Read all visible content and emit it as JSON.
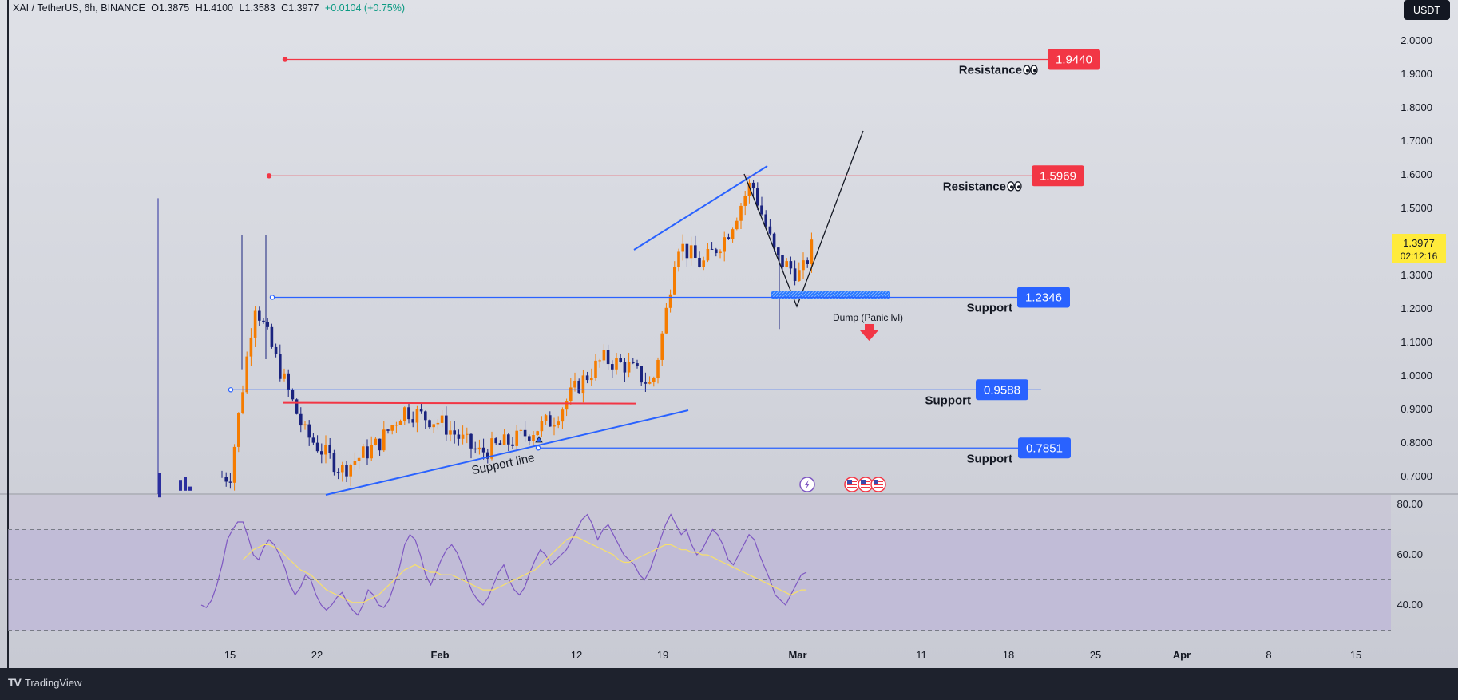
{
  "header": {
    "symbol": "XAI / TetherUS, 6h, BINANCE",
    "open": "O1.3875",
    "high": "H1.4100",
    "low": "L1.3583",
    "close": "C1.3977",
    "change": "+0.0104 (+0.75%)",
    "currency": "USDT"
  },
  "last_price": {
    "value": "1.3977",
    "countdown": "02:12:16"
  },
  "footer": {
    "brand": "TradingView"
  },
  "annotations": {
    "support_line": "Support line",
    "dump": "Dump (Panic lvl)"
  },
  "levels": [
    {
      "label": "Resistance",
      "value": "1.9440",
      "price": 1.944,
      "color": "#f23645",
      "icon": "eyes-emoji"
    },
    {
      "label": "Resistance",
      "value": "1.5969",
      "price": 1.5969,
      "color": "#f23645",
      "icon": "eyes-emoji"
    },
    {
      "label": "Support",
      "value": "1.2346",
      "price": 1.2346,
      "color": "#2962ff"
    },
    {
      "label": "Support",
      "value": "0.9588",
      "price": 0.9588,
      "color": "#2962ff"
    },
    {
      "label": "Support",
      "value": "0.7851",
      "price": 0.7851,
      "color": "#2962ff"
    }
  ],
  "chart_data": [
    {
      "type": "candlestick",
      "title": "",
      "series_name": "XAI / TetherUS",
      "y_axis": {
        "ticks": [
          "2.0000",
          "1.9000",
          "1.8000",
          "1.7000",
          "1.6000",
          "1.5000",
          "1.4000",
          "1.3000",
          "1.2000",
          "1.1000",
          "1.0000",
          "0.9000",
          "0.8000",
          "0.7000"
        ],
        "range": [
          0.66,
          2.05
        ]
      },
      "x_axis": {
        "ticks": [
          "15",
          "22",
          "Feb",
          "12",
          "19",
          "Mar",
          "11",
          "18",
          "25",
          "Apr",
          "8",
          "15"
        ]
      },
      "price_path": [
        {
          "date": "Jan 15",
          "close": 0.7
        },
        {
          "date": "Jan 17",
          "close": 1.22
        },
        {
          "date": "Jan 19",
          "close": 1.02
        },
        {
          "date": "Jan 21",
          "close": 0.83
        },
        {
          "date": "Jan 24",
          "close": 0.72
        },
        {
          "date": "Jan 27",
          "close": 0.8
        },
        {
          "date": "Jan 29",
          "close": 0.9
        },
        {
          "date": "Feb 1",
          "close": 0.86
        },
        {
          "date": "Feb 4",
          "close": 0.77
        },
        {
          "date": "Feb 7",
          "close": 0.81
        },
        {
          "date": "Feb 10",
          "close": 0.87
        },
        {
          "date": "Feb 12",
          "close": 0.97
        },
        {
          "date": "Feb 14",
          "close": 1.05
        },
        {
          "date": "Feb 16",
          "close": 1.03
        },
        {
          "date": "Feb 18",
          "close": 0.97
        },
        {
          "date": "Feb 19",
          "close": 1.16
        },
        {
          "date": "Feb 20",
          "close": 1.4
        },
        {
          "date": "Feb 22",
          "close": 1.33
        },
        {
          "date": "Feb 24",
          "close": 1.42
        },
        {
          "date": "Feb 26",
          "close": 1.58
        },
        {
          "date": "Feb 28",
          "close": 1.35
        },
        {
          "date": "Mar 1",
          "close": 1.3
        },
        {
          "date": "Mar 2",
          "close": 1.3977
        }
      ]
    },
    {
      "type": "line",
      "title": "",
      "y_axis": {
        "ticks": [
          "80.00",
          "60.00",
          "40.00"
        ],
        "range": [
          31,
          83
        ]
      },
      "levels": [
        70,
        50,
        30
      ],
      "series": [
        {
          "color": "#7e57c2",
          "values": [
            40,
            39,
            42,
            48,
            56,
            66,
            70,
            73,
            73,
            67,
            60,
            58,
            63,
            66,
            64,
            60,
            55,
            48,
            44,
            47,
            52,
            50,
            44,
            40,
            38,
            40,
            43,
            45,
            41,
            38,
            36,
            40,
            46,
            44,
            40,
            39,
            42,
            48,
            55,
            64,
            68,
            66,
            60,
            52,
            48,
            53,
            58,
            62,
            64,
            61,
            56,
            50,
            45,
            42,
            40,
            43,
            48,
            53,
            56,
            50,
            46,
            44,
            47,
            53,
            58,
            62,
            60,
            56,
            58,
            60,
            62,
            66,
            70,
            74,
            76,
            72,
            66,
            70,
            72,
            68,
            64,
            60,
            58,
            56,
            52,
            50,
            54,
            60,
            66,
            72,
            76,
            72,
            68,
            70,
            64,
            60,
            62,
            66,
            70,
            68,
            64,
            58,
            56,
            60,
            64,
            68,
            66,
            60,
            55,
            50,
            44,
            42,
            40,
            44,
            48,
            52,
            53
          ]
        },
        {
          "color": "#f7e06b",
          "values": [
            null,
            null,
            null,
            null,
            null,
            null,
            null,
            null,
            58,
            60,
            62,
            63,
            64,
            64,
            63,
            62,
            60,
            58,
            56,
            54,
            53,
            52,
            50,
            48,
            46,
            45,
            44,
            43,
            42,
            41,
            41,
            41,
            42,
            43,
            44,
            46,
            48,
            50,
            52,
            54,
            55,
            56,
            55,
            54,
            53,
            53,
            52,
            52,
            52,
            51,
            50,
            49,
            48,
            47,
            46,
            46,
            46,
            47,
            48,
            49,
            50,
            51,
            52,
            53,
            54,
            56,
            58,
            60,
            62,
            64,
            66,
            67,
            67,
            66,
            65,
            64,
            63,
            62,
            61,
            60,
            58,
            57,
            57,
            58,
            59,
            60,
            61,
            62,
            63,
            64,
            64,
            63,
            62,
            62,
            61,
            61,
            60,
            60,
            59,
            58,
            57,
            56,
            55,
            54,
            53,
            52,
            51,
            50,
            49,
            48,
            47,
            46,
            45,
            44,
            45,
            46,
            46
          ]
        }
      ]
    }
  ]
}
